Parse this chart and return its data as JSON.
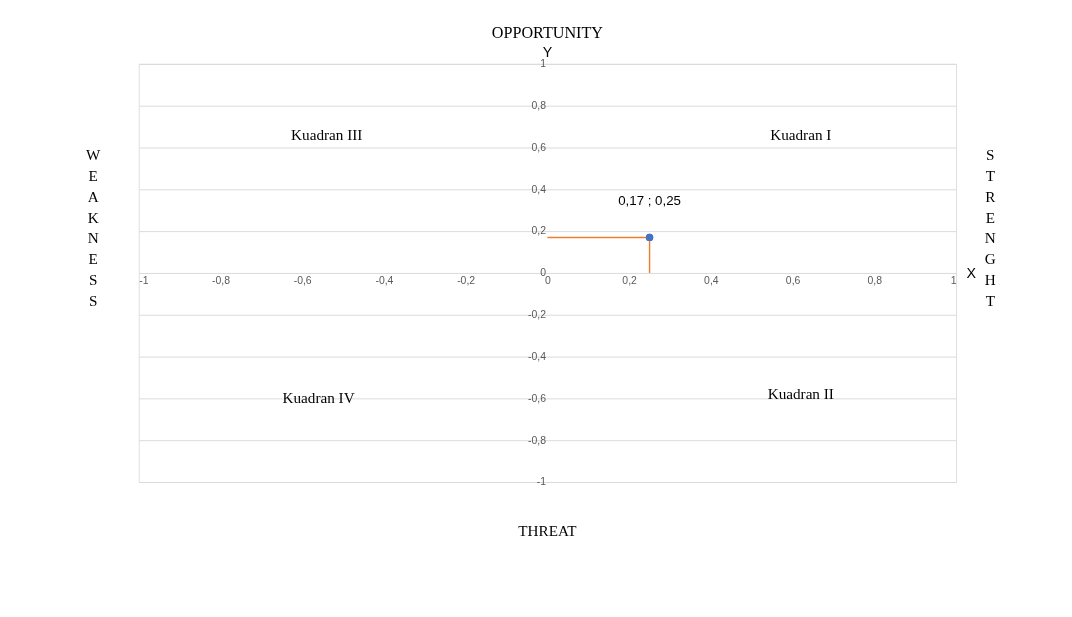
{
  "chart_data": {
    "type": "scatter",
    "title": "OPPORTUNITY",
    "xlabel": "X",
    "ylabel": "Y",
    "x": [
      0.25
    ],
    "values": [
      0.17
    ],
    "color": "#4472c4",
    "marker": "circle",
    "value_labels": [
      "0,17 ; 0,25"
    ],
    "errors": [
      [
        0,
        0.17
      ]
    ],
    "xerrors": [
      [
        0,
        0.25
      ]
    ],
    "xlim": [
      -1,
      1
    ],
    "ylim": [
      -1,
      1
    ],
    "xticks": [
      {
        "value": -1,
        "label": "-1"
      },
      {
        "value": -0.8,
        "label": "-0,8"
      },
      {
        "value": -0.6,
        "label": "-0,6"
      },
      {
        "value": -0.4,
        "label": "-0,4"
      },
      {
        "value": -0.2,
        "label": "-0,2"
      },
      {
        "value": 0,
        "label": "0"
      },
      {
        "value": 0.2,
        "label": "0,2"
      },
      {
        "value": 0.4,
        "label": "0,4"
      },
      {
        "value": 0.6,
        "label": "0,6"
      },
      {
        "value": 0.8,
        "label": "0,8"
      },
      {
        "value": 1,
        "label": "1"
      }
    ],
    "yticks": [
      {
        "value": -1,
        "label": "-1"
      },
      {
        "value": -0.8,
        "label": "-0,8"
      },
      {
        "value": -0.6,
        "label": "-0,6"
      },
      {
        "value": -0.4,
        "label": "-0,4"
      },
      {
        "value": -0.2,
        "label": "-0,2"
      },
      {
        "value": 0,
        "label": "0"
      },
      {
        "value": 0.2,
        "label": "0,2"
      },
      {
        "value": 0.4,
        "label": "0,4"
      },
      {
        "value": 0.6,
        "label": "0,6"
      },
      {
        "value": 0.8,
        "label": "0,8"
      },
      {
        "value": 1,
        "label": "1"
      }
    ],
    "grid": "y",
    "annotations": [
      "Kuadran I",
      "Kuadran II",
      "Kuadran III",
      "Kuadran IV",
      "THREAT",
      "WEAKNESS",
      "STRENGHT"
    ]
  }
}
